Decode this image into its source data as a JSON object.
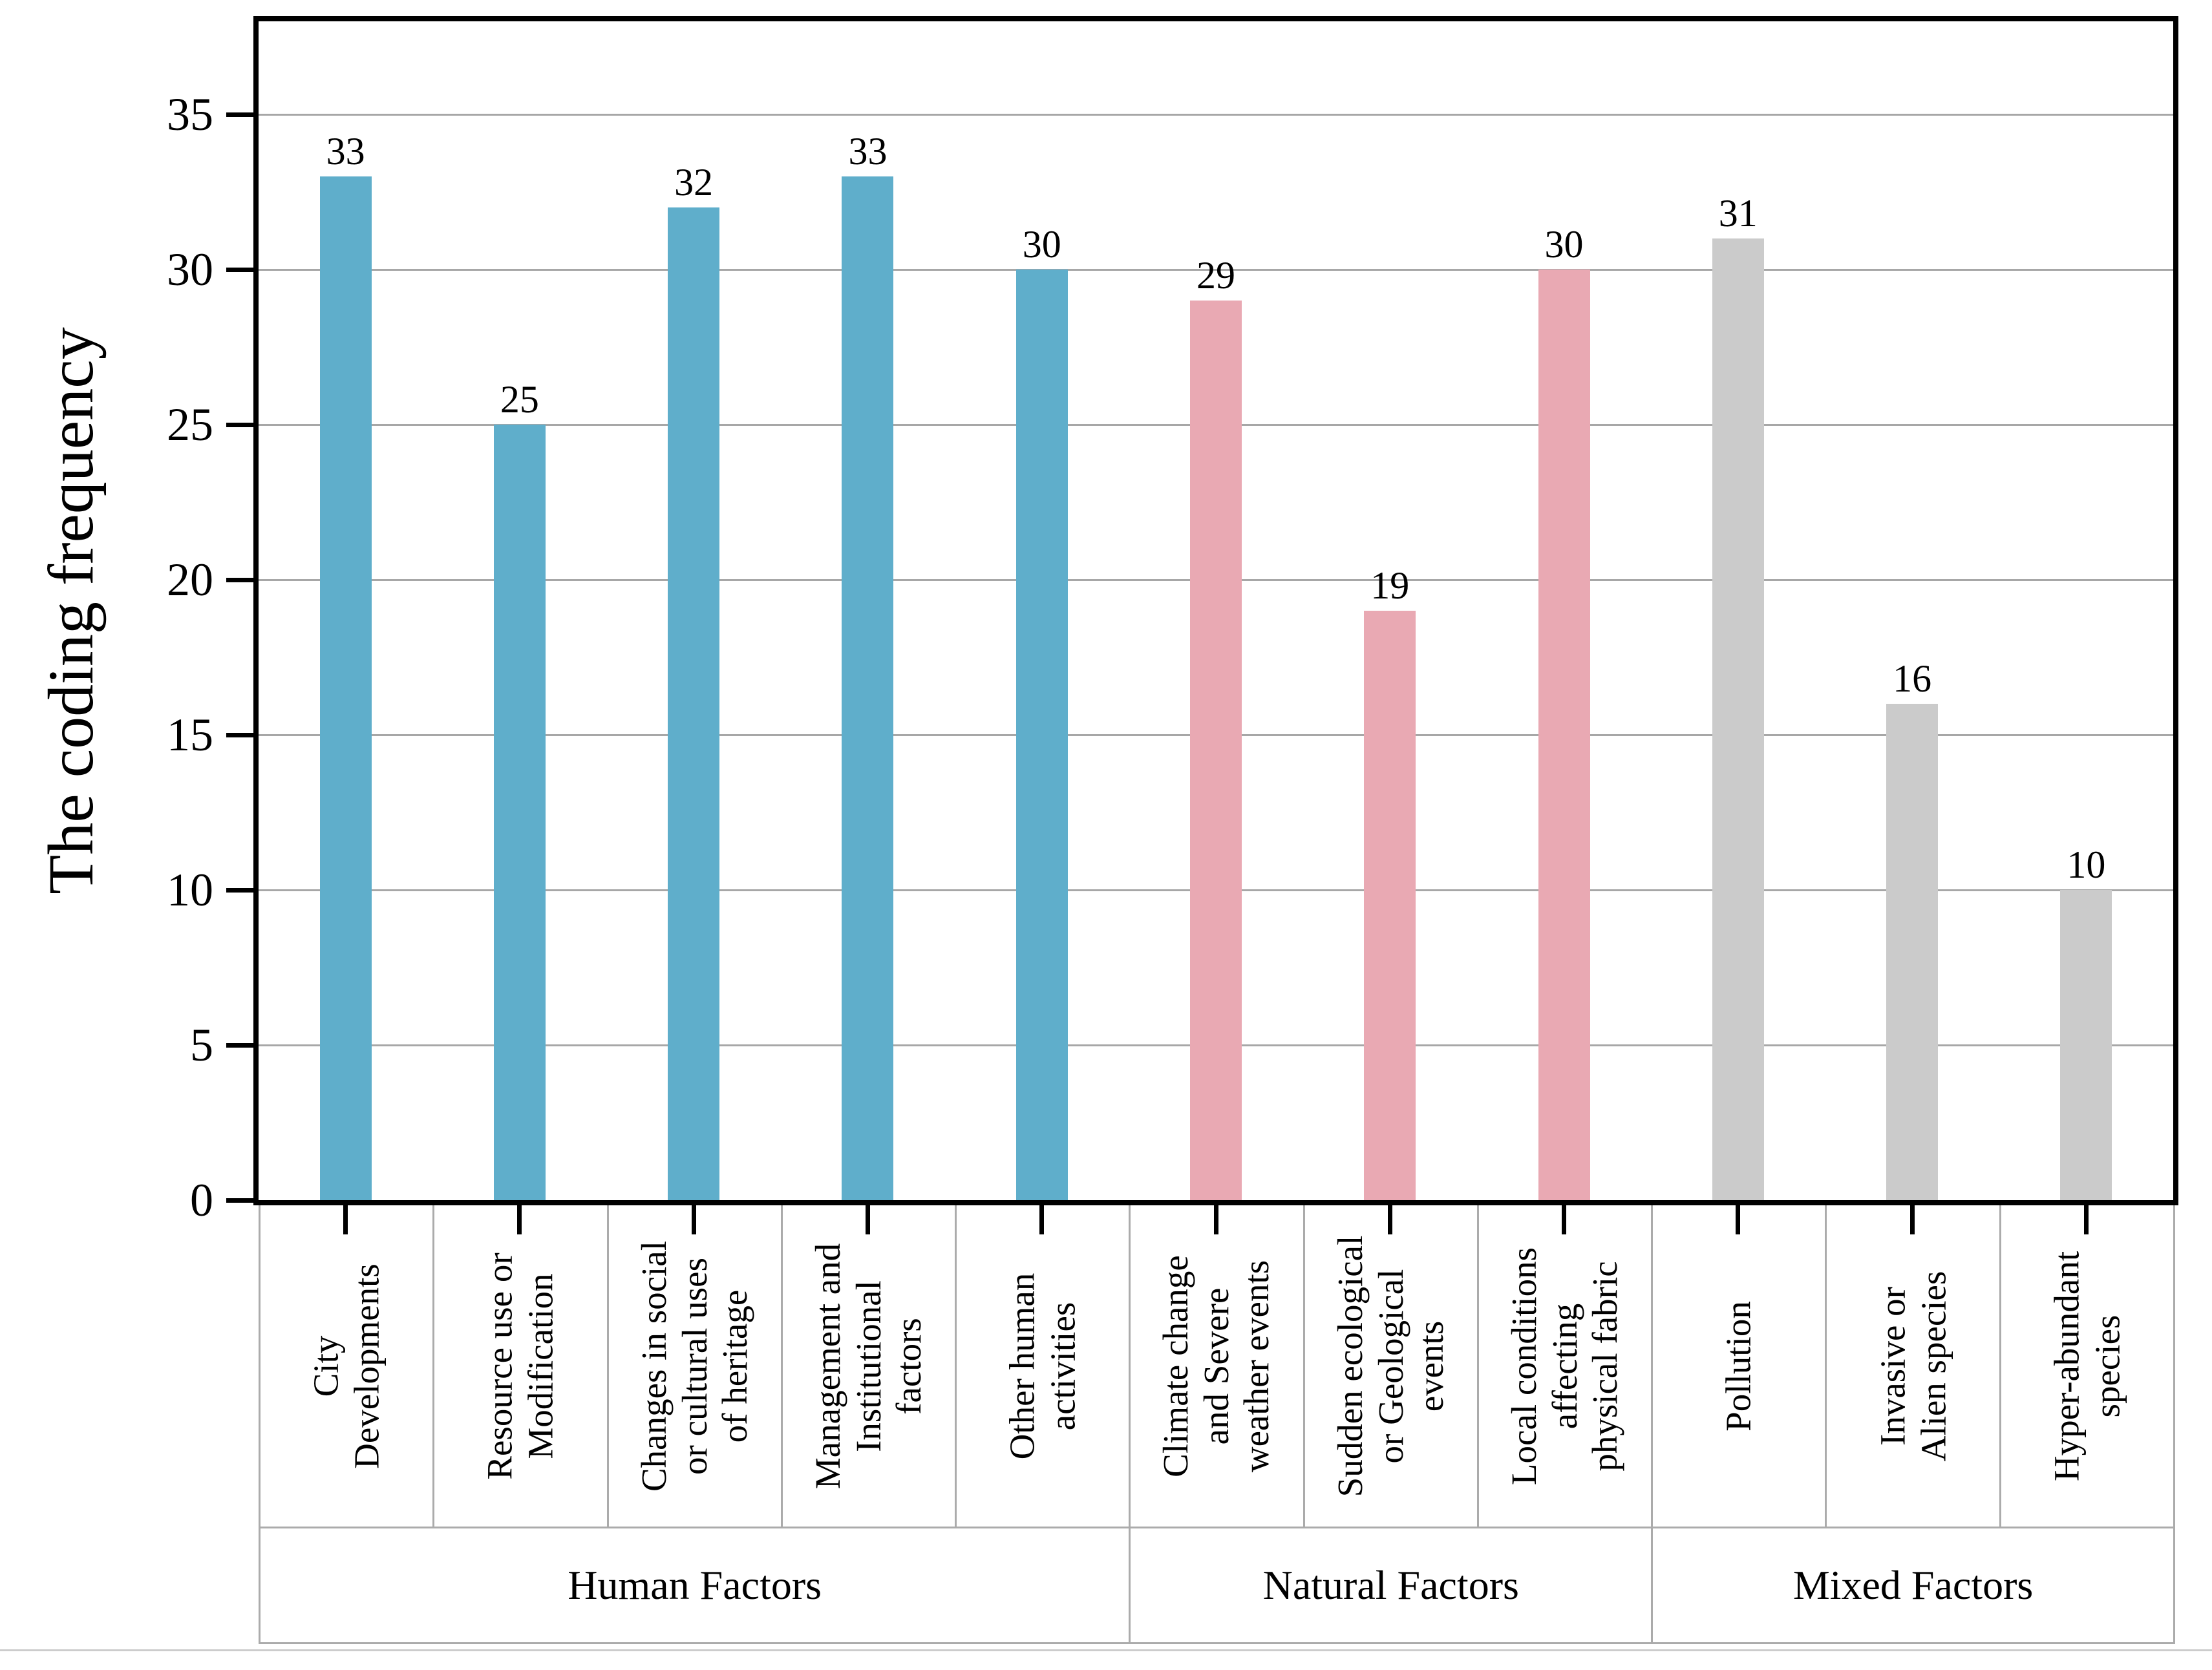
{
  "chart_data": {
    "type": "bar",
    "title": "",
    "xlabel": "",
    "ylabel": "The coding frequency",
    "ylim": [
      0,
      38
    ],
    "yticks": [
      0,
      5,
      10,
      15,
      20,
      25,
      30,
      35
    ],
    "grid": true,
    "grid_color": "#a7a7a7",
    "frame_color": "#000000",
    "table_border_color": "#ababab",
    "categories": [
      "City\nDevelopments",
      "Resource use or\nModification",
      "Changes in social\nor cultural uses\nof heritage",
      "Management and\nInstitutional\nfactors",
      "Other human\nactivities",
      "Climate change\nand Severe\nweather events",
      "Sudden ecological\nor Geological\nevents",
      "Local conditions\naffecting\nphysical fabric",
      "Pollution",
      "Invasive or\nAlien species",
      "Hyper-abundant\nspecies"
    ],
    "values": [
      33,
      25,
      32,
      33,
      30,
      29,
      19,
      30,
      31,
      16,
      10
    ],
    "data_labels": [
      "33",
      "25",
      "32",
      "33",
      "30",
      "29",
      "19",
      "30",
      "31",
      "16",
      "10"
    ],
    "groups": [
      {
        "label": "Human Factors",
        "span": 5,
        "color": "#5faecb"
      },
      {
        "label": "Natural Factors",
        "span": 3,
        "color": "#e9a9b3"
      },
      {
        "label": "Mixed Factors",
        "span": 3,
        "color": "#cbcbcb"
      }
    ],
    "legend": null
  }
}
